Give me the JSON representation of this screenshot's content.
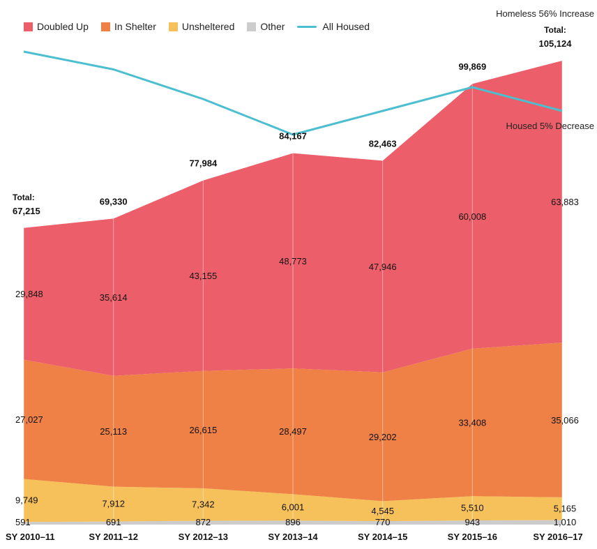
{
  "legend": {
    "doubled_up": "Doubled Up",
    "in_shelter": "In Shelter",
    "unsheltered": "Unsheltered",
    "other": "Other",
    "all_housed": "All Housed"
  },
  "notes": {
    "homeless_increase": "Homeless 56% Increase",
    "housed_decrease": "Housed 5% Decrease",
    "total_label": "Total:"
  },
  "colors": {
    "doubled_up": "#ec5f6a",
    "in_shelter": "#ef8046",
    "unsheltered": "#f6c15a",
    "other": "#cccccc",
    "all_housed": "#4bbfcf"
  },
  "chart_data": {
    "type": "area",
    "stacked": true,
    "categories": [
      "SY 2010–11",
      "SY 2011–12",
      "SY 2012–13",
      "SY 2013–14",
      "SY 2014–15",
      "SY 2015–16",
      "SY 2016–17"
    ],
    "series": [
      {
        "name": "Other",
        "values": [
          591,
          691,
          872,
          896,
          770,
          943,
          1010
        ],
        "labels": [
          "591",
          "691",
          "872",
          "896",
          "770",
          "943",
          "1,010"
        ]
      },
      {
        "name": "Unsheltered",
        "values": [
          9749,
          7912,
          7342,
          6001,
          4545,
          5510,
          5165
        ],
        "labels": [
          "9,749",
          "7,912",
          "7,342",
          "6,001",
          "4,545",
          "5,510",
          "5,165"
        ]
      },
      {
        "name": "In Shelter",
        "values": [
          27027,
          25113,
          26615,
          28497,
          29202,
          33408,
          35066
        ],
        "labels": [
          "27,027",
          "25,113",
          "26,615",
          "28,497",
          "29,202",
          "33,408",
          "35,066"
        ]
      },
      {
        "name": "Doubled Up",
        "values": [
          29848,
          35614,
          43155,
          48773,
          47946,
          60008,
          63883
        ],
        "labels": [
          "29,848",
          "35,614",
          "43,155",
          "48,773",
          "47,946",
          "60,008",
          "63,883"
        ]
      }
    ],
    "totals": [
      67215,
      69330,
      77984,
      84167,
      82463,
      99869,
      105124
    ],
    "total_labels": [
      "67,215",
      "69,330",
      "77,984",
      "84,167",
      "82,463",
      "99,869",
      "105,124"
    ],
    "all_housed_line": {
      "name": "All Housed",
      "relative_values": [
        1.0,
        0.985,
        0.96,
        0.93,
        0.95,
        0.97,
        0.95
      ]
    },
    "grid": false,
    "legend_position": "top-left"
  }
}
